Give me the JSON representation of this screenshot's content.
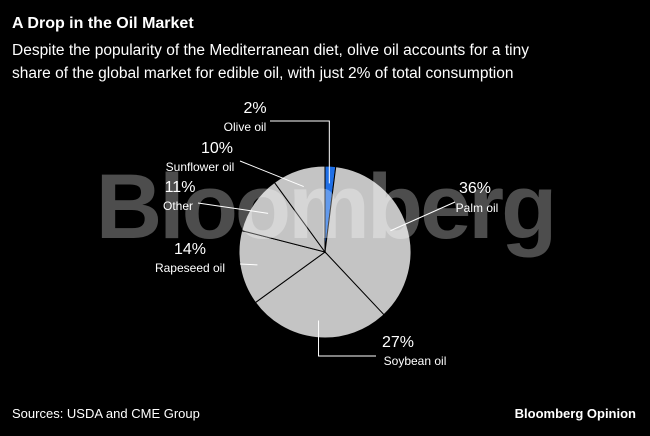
{
  "chart_data": {
    "type": "pie",
    "title": "A Drop in the Oil Market",
    "subtitle": [
      "Despite the popularity of the Mediterranean diet, olive oil accounts for a tiny",
      "share of the global market for edible oil, with just 2% of total consumption"
    ],
    "categories": [
      "Olive oil",
      "Palm oil",
      "Soybean oil",
      "Rapeseed oil",
      "Other",
      "Sunflower oil"
    ],
    "values": [
      2,
      36,
      27,
      14,
      11,
      10
    ],
    "value_labels": [
      "2%",
      "36%",
      "27%",
      "14%",
      "11%",
      "10%"
    ],
    "colors": [
      "#1f6fe6",
      "#c4c4c4",
      "#c4c4c4",
      "#c4c4c4",
      "#c4c4c4",
      "#c4c4c4"
    ],
    "source": "Sources: USDA and CME Group",
    "watermark": "Bloomberg",
    "brand": "Bloomberg Opinion"
  }
}
